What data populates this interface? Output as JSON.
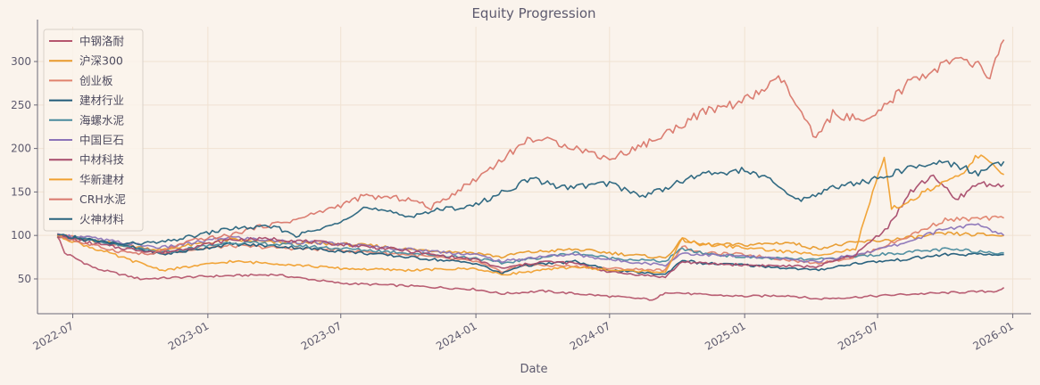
{
  "chart_data": {
    "type": "line",
    "title": "Equity Progression",
    "xlabel": "Date",
    "ylabel": "",
    "ylim": [
      10,
      340
    ],
    "xlim": [
      "2022-05-14",
      "2026-01-26"
    ],
    "yticks": [
      50,
      100,
      150,
      200,
      250,
      300
    ],
    "xticks": [
      {
        "date": "2022-07-01",
        "label": "2022-07"
      },
      {
        "date": "2023-01-01",
        "label": "2023-01"
      },
      {
        "date": "2023-07-01",
        "label": "2023-07"
      },
      {
        "date": "2024-01-01",
        "label": "2024-01"
      },
      {
        "date": "2024-07-01",
        "label": "2024-07"
      },
      {
        "date": "2025-01-01",
        "label": "2025-01"
      },
      {
        "date": "2025-07-01",
        "label": "2025-07"
      },
      {
        "date": "2026-01-01",
        "label": "2026-01"
      }
    ],
    "grid": true,
    "legend_position": "upper-left",
    "series": [
      {
        "name": "中钢洛耐",
        "color": "#b5566e",
        "points": [
          [
            "2022-06-10",
            100
          ],
          [
            "2022-06-20",
            80
          ],
          [
            "2022-08-01",
            62
          ],
          [
            "2022-10-01",
            50
          ],
          [
            "2023-01-01",
            53
          ],
          [
            "2023-04-01",
            55
          ],
          [
            "2023-07-01",
            45
          ],
          [
            "2023-10-01",
            42
          ],
          [
            "2024-01-01",
            38
          ],
          [
            "2024-02-05",
            33
          ],
          [
            "2024-04-01",
            36
          ],
          [
            "2024-07-01",
            30
          ],
          [
            "2024-09-01",
            26
          ],
          [
            "2024-09-15",
            35
          ],
          [
            "2024-11-01",
            32
          ],
          [
            "2025-01-01",
            30
          ],
          [
            "2025-03-01",
            31
          ],
          [
            "2025-04-08",
            27
          ],
          [
            "2025-06-01",
            29
          ],
          [
            "2025-08-01",
            32
          ],
          [
            "2025-10-01",
            34
          ],
          [
            "2025-12-10",
            36
          ],
          [
            "2025-12-20",
            40
          ]
        ]
      },
      {
        "name": "沪深300",
        "color": "#e89a2c",
        "points": [
          [
            "2022-06-10",
            100
          ],
          [
            "2022-07-15",
            95
          ],
          [
            "2022-08-15",
            92
          ],
          [
            "2022-10-31",
            83
          ],
          [
            "2022-12-01",
            88
          ],
          [
            "2023-01-31",
            95
          ],
          [
            "2023-04-01",
            92
          ],
          [
            "2023-07-01",
            90
          ],
          [
            "2023-08-15",
            88
          ],
          [
            "2023-10-01",
            84
          ],
          [
            "2024-01-01",
            80
          ],
          [
            "2024-02-05",
            75
          ],
          [
            "2024-03-01",
            80
          ],
          [
            "2024-05-15",
            84
          ],
          [
            "2024-07-01",
            80
          ],
          [
            "2024-09-15",
            74
          ],
          [
            "2024-10-08",
            95
          ],
          [
            "2024-11-01",
            90
          ],
          [
            "2025-01-01",
            89
          ],
          [
            "2025-03-01",
            92
          ],
          [
            "2025-04-08",
            85
          ],
          [
            "2025-06-01",
            92
          ],
          [
            "2025-08-01",
            96
          ],
          [
            "2025-10-01",
            102
          ],
          [
            "2025-12-20",
            100
          ]
        ]
      },
      {
        "name": "创业板",
        "color": "#e0826d",
        "points": [
          [
            "2022-06-10",
            100
          ],
          [
            "2022-07-20",
            96
          ],
          [
            "2022-09-01",
            90
          ],
          [
            "2022-10-31",
            80
          ],
          [
            "2023-01-31",
            88
          ],
          [
            "2023-04-01",
            86
          ],
          [
            "2023-07-01",
            83
          ],
          [
            "2023-10-01",
            78
          ],
          [
            "2024-01-01",
            70
          ],
          [
            "2024-02-05",
            58
          ],
          [
            "2024-03-01",
            66
          ],
          [
            "2024-05-01",
            65
          ],
          [
            "2024-07-01",
            62
          ],
          [
            "2024-09-15",
            60
          ],
          [
            "2024-10-08",
            88
          ],
          [
            "2024-11-01",
            80
          ],
          [
            "2025-01-01",
            78
          ],
          [
            "2025-04-08",
            68
          ],
          [
            "2025-06-01",
            75
          ],
          [
            "2025-08-01",
            95
          ],
          [
            "2025-10-01",
            118
          ],
          [
            "2025-12-20",
            120
          ]
        ]
      },
      {
        "name": "建材行业",
        "color": "#1f5a78",
        "points": [
          [
            "2022-06-10",
            100
          ],
          [
            "2022-07-20",
            96
          ],
          [
            "2022-09-01",
            90
          ],
          [
            "2022-10-31",
            78
          ],
          [
            "2023-01-31",
            90
          ],
          [
            "2023-04-01",
            88
          ],
          [
            "2023-07-01",
            82
          ],
          [
            "2023-10-01",
            75
          ],
          [
            "2024-01-01",
            68
          ],
          [
            "2024-02-05",
            56
          ],
          [
            "2024-03-01",
            65
          ],
          [
            "2024-05-15",
            70
          ],
          [
            "2024-07-01",
            60
          ],
          [
            "2024-09-15",
            55
          ],
          [
            "2024-10-08",
            72
          ],
          [
            "2024-11-01",
            68
          ],
          [
            "2025-01-01",
            66
          ],
          [
            "2025-04-08",
            60
          ],
          [
            "2025-06-01",
            68
          ],
          [
            "2025-08-01",
            72
          ],
          [
            "2025-10-01",
            78
          ],
          [
            "2025-12-20",
            78
          ]
        ]
      },
      {
        "name": "海螺水泥",
        "color": "#4a8b9e",
        "points": [
          [
            "2022-06-10",
            100
          ],
          [
            "2022-07-20",
            95
          ],
          [
            "2022-09-01",
            88
          ],
          [
            "2022-10-31",
            80
          ],
          [
            "2023-01-31",
            92
          ],
          [
            "2023-04-01",
            90
          ],
          [
            "2023-07-01",
            85
          ],
          [
            "2023-10-01",
            80
          ],
          [
            "2024-01-01",
            74
          ],
          [
            "2024-02-05",
            68
          ],
          [
            "2024-04-01",
            75
          ],
          [
            "2024-05-15",
            80
          ],
          [
            "2024-07-01",
            74
          ],
          [
            "2024-09-15",
            70
          ],
          [
            "2024-10-08",
            85
          ],
          [
            "2024-11-01",
            80
          ],
          [
            "2025-01-01",
            75
          ],
          [
            "2025-04-08",
            72
          ],
          [
            "2025-06-01",
            76
          ],
          [
            "2025-08-01",
            80
          ],
          [
            "2025-10-01",
            84
          ],
          [
            "2025-12-20",
            80
          ]
        ]
      },
      {
        "name": "中国巨石",
        "color": "#8b74b8",
        "points": [
          [
            "2022-06-10",
            100
          ],
          [
            "2022-07-20",
            98
          ],
          [
            "2022-09-01",
            92
          ],
          [
            "2022-10-31",
            86
          ],
          [
            "2023-01-31",
            98
          ],
          [
            "2023-04-01",
            94
          ],
          [
            "2023-07-01",
            90
          ],
          [
            "2023-10-01",
            84
          ],
          [
            "2024-01-01",
            78
          ],
          [
            "2024-02-05",
            70
          ],
          [
            "2024-04-01",
            76
          ],
          [
            "2024-05-15",
            78
          ],
          [
            "2024-07-01",
            72
          ],
          [
            "2024-09-15",
            66
          ],
          [
            "2024-10-08",
            80
          ],
          [
            "2024-11-01",
            78
          ],
          [
            "2025-01-01",
            76
          ],
          [
            "2025-04-08",
            70
          ],
          [
            "2025-06-01",
            78
          ],
          [
            "2025-08-01",
            90
          ],
          [
            "2025-10-01",
            108
          ],
          [
            "2025-11-15",
            112
          ],
          [
            "2025-12-20",
            100
          ]
        ]
      },
      {
        "name": "中材科技",
        "color": "#a84b6b",
        "points": [
          [
            "2022-06-10",
            100
          ],
          [
            "2022-07-20",
            92
          ],
          [
            "2022-09-01",
            86
          ],
          [
            "2022-10-31",
            80
          ],
          [
            "2023-01-31",
            95
          ],
          [
            "2023-04-01",
            96
          ],
          [
            "2023-07-01",
            90
          ],
          [
            "2023-09-15",
            84
          ],
          [
            "2023-11-01",
            78
          ],
          [
            "2024-01-01",
            72
          ],
          [
            "2024-02-05",
            62
          ],
          [
            "2024-04-01",
            70
          ],
          [
            "2024-05-15",
            68
          ],
          [
            "2024-07-01",
            58
          ],
          [
            "2024-09-15",
            52
          ],
          [
            "2024-10-08",
            70
          ],
          [
            "2024-11-01",
            68
          ],
          [
            "2025-01-01",
            66
          ],
          [
            "2025-04-08",
            64
          ],
          [
            "2025-06-01",
            78
          ],
          [
            "2025-07-15",
            110
          ],
          [
            "2025-08-15",
            150
          ],
          [
            "2025-09-15",
            170
          ],
          [
            "2025-10-15",
            140
          ],
          [
            "2025-11-15",
            160
          ],
          [
            "2025-12-20",
            158
          ]
        ]
      },
      {
        "name": "华新建材",
        "color": "#f0a030",
        "points": [
          [
            "2022-06-10",
            100
          ],
          [
            "2022-07-20",
            88
          ],
          [
            "2022-09-01",
            76
          ],
          [
            "2022-10-31",
            60
          ],
          [
            "2023-01-31",
            70
          ],
          [
            "2023-04-01",
            68
          ],
          [
            "2023-07-01",
            62
          ],
          [
            "2023-10-01",
            60
          ],
          [
            "2024-01-01",
            62
          ],
          [
            "2024-02-05",
            55
          ],
          [
            "2024-04-01",
            60
          ],
          [
            "2024-05-15",
            64
          ],
          [
            "2024-07-01",
            60
          ],
          [
            "2024-09-15",
            58
          ],
          [
            "2024-10-08",
            96
          ],
          [
            "2024-11-01",
            90
          ],
          [
            "2025-01-01",
            86
          ],
          [
            "2025-04-08",
            78
          ],
          [
            "2025-06-01",
            84
          ],
          [
            "2025-07-10",
            190
          ],
          [
            "2025-07-20",
            130
          ],
          [
            "2025-08-15",
            140
          ],
          [
            "2025-09-15",
            155
          ],
          [
            "2025-10-15",
            165
          ],
          [
            "2025-11-15",
            192
          ],
          [
            "2025-12-20",
            170
          ]
        ]
      },
      {
        "name": "CRH水泥",
        "color": "#d9776b",
        "points": [
          [
            "2022-06-10",
            100
          ],
          [
            "2022-07-20",
            90
          ],
          [
            "2022-09-01",
            82
          ],
          [
            "2022-10-15",
            78
          ],
          [
            "2022-12-15",
            95
          ],
          [
            "2023-01-31",
            100
          ],
          [
            "2023-03-01",
            108
          ],
          [
            "2023-05-01",
            118
          ],
          [
            "2023-07-01",
            135
          ],
          [
            "2023-08-01",
            145
          ],
          [
            "2023-10-01",
            142
          ],
          [
            "2023-11-01",
            132
          ],
          [
            "2024-01-01",
            165
          ],
          [
            "2024-03-15",
            212
          ],
          [
            "2024-05-01",
            205
          ],
          [
            "2024-07-01",
            188
          ],
          [
            "2024-09-01",
            210
          ],
          [
            "2024-11-01",
            240
          ],
          [
            "2025-01-01",
            255
          ],
          [
            "2025-02-20",
            280
          ],
          [
            "2025-04-08",
            210
          ],
          [
            "2025-05-01",
            240
          ],
          [
            "2025-06-20",
            230
          ],
          [
            "2025-08-15",
            278
          ],
          [
            "2025-10-15",
            302
          ],
          [
            "2025-11-15",
            295
          ],
          [
            "2025-12-01",
            282
          ],
          [
            "2025-12-20",
            325
          ]
        ]
      },
      {
        "name": "火神材料",
        "color": "#27637d",
        "points": [
          [
            "2022-06-10",
            100
          ],
          [
            "2022-07-20",
            95
          ],
          [
            "2022-09-01",
            90
          ],
          [
            "2022-10-31",
            92
          ],
          [
            "2023-01-31",
            108
          ],
          [
            "2023-04-01",
            110
          ],
          [
            "2023-05-01",
            100
          ],
          [
            "2023-06-15",
            110
          ],
          [
            "2023-08-01",
            132
          ],
          [
            "2023-10-01",
            122
          ],
          [
            "2023-11-01",
            128
          ],
          [
            "2024-01-01",
            135
          ],
          [
            "2024-03-15",
            165
          ],
          [
            "2024-05-01",
            155
          ],
          [
            "2024-07-01",
            160
          ],
          [
            "2024-08-15",
            145
          ],
          [
            "2024-11-01",
            170
          ],
          [
            "2025-01-01",
            175
          ],
          [
            "2025-02-01",
            165
          ],
          [
            "2025-03-15",
            140
          ],
          [
            "2025-05-01",
            155
          ],
          [
            "2025-07-01",
            165
          ],
          [
            "2025-08-15",
            178
          ],
          [
            "2025-10-01",
            185
          ],
          [
            "2025-11-15",
            172
          ],
          [
            "2025-12-20",
            185
          ]
        ]
      }
    ]
  }
}
